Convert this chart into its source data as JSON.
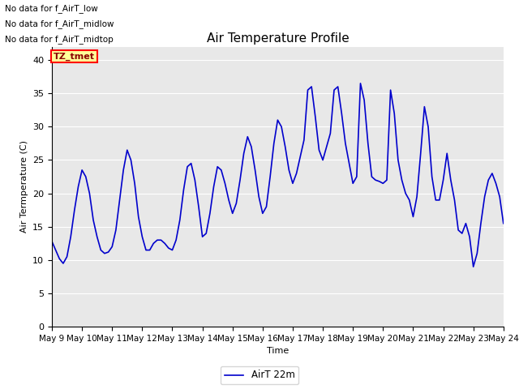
{
  "title": "Air Temperature Profile",
  "xlabel": "Time",
  "ylabel": "Air Termperature (C)",
  "legend_label": "AirT 22m",
  "annotations": [
    "No data for f_AirT_low",
    "No data for f_AirT_midlow",
    "No data for f_AirT_midtop"
  ],
  "tz_label": "TZ_tmet",
  "background_color": "#e8e8e8",
  "line_color": "#0000cc",
  "ylim": [
    0,
    42
  ],
  "yticks": [
    0,
    5,
    10,
    15,
    20,
    25,
    30,
    35,
    40
  ],
  "x_start": 9,
  "x_end": 24,
  "xtick_positions": [
    9,
    10,
    11,
    12,
    13,
    14,
    15,
    16,
    17,
    18,
    19,
    20,
    21,
    22,
    23,
    24
  ],
  "xtick_labels": [
    "May 9",
    "May 10",
    "May 11",
    "May 12",
    "May 13",
    "May 14",
    "May 15",
    "May 16",
    "May 17",
    "May 18",
    "May 19",
    "May 20",
    "May 21",
    "May 22",
    "May 23",
    "May 24"
  ],
  "time_values": [
    9.0,
    9.125,
    9.25,
    9.375,
    9.5,
    9.625,
    9.75,
    9.875,
    10.0,
    10.125,
    10.25,
    10.375,
    10.5,
    10.625,
    10.75,
    10.875,
    11.0,
    11.125,
    11.25,
    11.375,
    11.5,
    11.625,
    11.75,
    11.875,
    12.0,
    12.125,
    12.25,
    12.375,
    12.5,
    12.625,
    12.75,
    12.875,
    13.0,
    13.125,
    13.25,
    13.375,
    13.5,
    13.625,
    13.75,
    13.875,
    14.0,
    14.125,
    14.25,
    14.375,
    14.5,
    14.625,
    14.75,
    14.875,
    15.0,
    15.125,
    15.25,
    15.375,
    15.5,
    15.625,
    15.75,
    15.875,
    16.0,
    16.125,
    16.25,
    16.375,
    16.5,
    16.625,
    16.75,
    16.875,
    17.0,
    17.125,
    17.25,
    17.375,
    17.5,
    17.625,
    17.75,
    17.875,
    18.0,
    18.125,
    18.25,
    18.375,
    18.5,
    18.625,
    18.75,
    18.875,
    19.0,
    19.125,
    19.25,
    19.375,
    19.5,
    19.625,
    19.75,
    19.875,
    20.0,
    20.125,
    20.25,
    20.375,
    20.5,
    20.625,
    20.75,
    20.875,
    21.0,
    21.125,
    21.25,
    21.375,
    21.5,
    21.625,
    21.75,
    21.875,
    22.0,
    22.125,
    22.25,
    22.375,
    22.5,
    22.625,
    22.75,
    22.875,
    23.0,
    23.125,
    23.25,
    23.375,
    23.5,
    23.625,
    23.75,
    23.875,
    24.0
  ],
  "temp_values": [
    12.8,
    11.5,
    10.2,
    9.5,
    10.5,
    13.5,
    17.5,
    21.0,
    23.5,
    22.5,
    20.0,
    16.0,
    13.5,
    11.5,
    11.0,
    11.2,
    12.0,
    14.5,
    19.0,
    23.5,
    26.5,
    25.0,
    21.5,
    16.5,
    13.5,
    11.5,
    11.5,
    12.5,
    13.0,
    13.0,
    12.5,
    11.8,
    11.5,
    13.0,
    16.0,
    20.5,
    24.0,
    24.5,
    22.0,
    18.0,
    13.5,
    14.0,
    17.0,
    21.0,
    24.0,
    23.5,
    21.5,
    19.0,
    17.0,
    18.5,
    22.0,
    26.0,
    28.5,
    27.0,
    23.5,
    19.5,
    17.0,
    18.0,
    22.5,
    27.5,
    31.0,
    30.0,
    27.0,
    23.5,
    21.5,
    23.0,
    25.5,
    28.0,
    35.5,
    36.0,
    31.5,
    26.5,
    25.0,
    27.0,
    29.0,
    35.5,
    36.0,
    32.0,
    27.5,
    24.5,
    21.5,
    22.5,
    36.5,
    34.0,
    27.5,
    22.5,
    22.0,
    21.8,
    21.5,
    22.0,
    35.5,
    32.0,
    25.0,
    22.0,
    20.0,
    19.0,
    16.5,
    19.5,
    26.0,
    33.0,
    30.0,
    22.5,
    19.0,
    19.0,
    22.0,
    26.0,
    22.0,
    19.0,
    14.5,
    14.0,
    15.5,
    13.5,
    9.0,
    11.0,
    15.5,
    19.5,
    22.0,
    23.0,
    21.5,
    19.5,
    15.5
  ]
}
